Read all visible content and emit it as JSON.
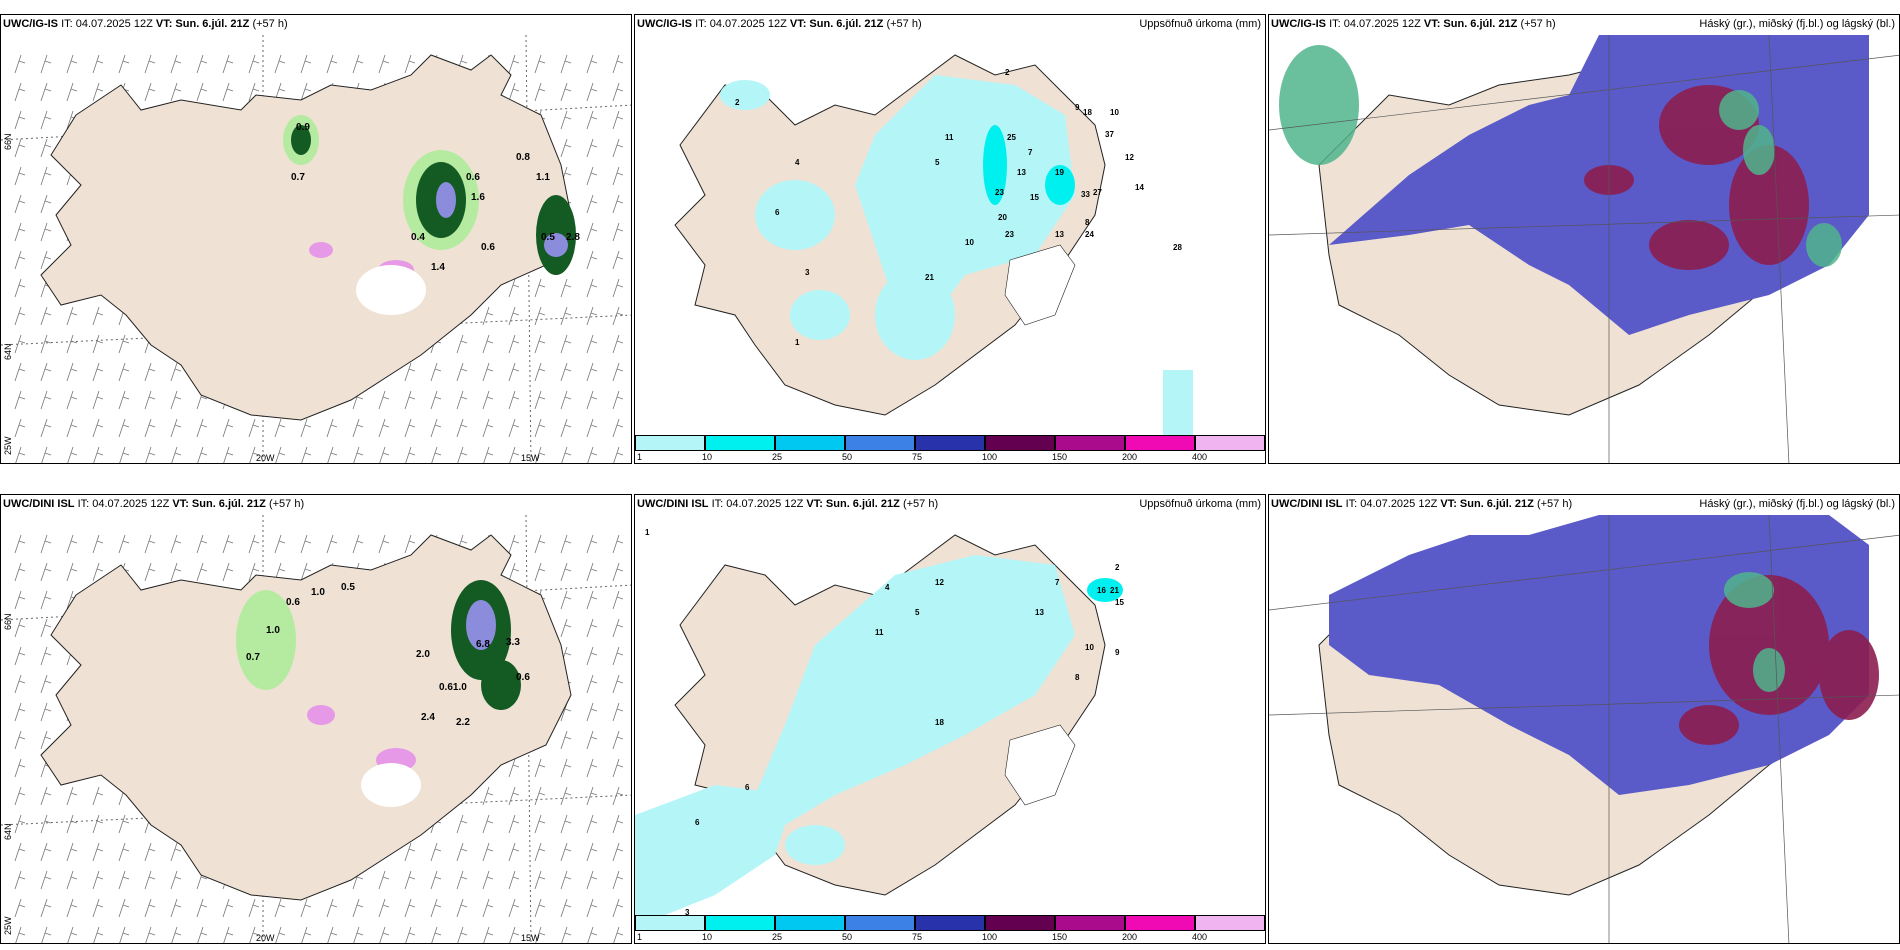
{
  "colors": {
    "land": "#efe2d4",
    "cyan": "#b4f5f8",
    "blue": "#5a5ac8",
    "red": "#8c1e50",
    "redlight": "#c86e5a",
    "green": "#50b48c",
    "lightgreen": "#b4eba0",
    "darkgreen": "#145a23",
    "pink": "#e699e6"
  },
  "panels": {
    "top_left": {
      "model": "UWC/IG-IS",
      "it": "IT: 04.07.2025 12Z",
      "vt": "VT: Sun. 6.júl. 21Z",
      "lead": "(+57 h)",
      "right": ""
    },
    "top_mid": {
      "model": "UWC/IG-IS",
      "it": "IT: 04.07.2025 12Z",
      "vt": "VT: Sun. 6.júl. 21Z",
      "lead": "(+57 h)",
      "right": "Uppsöfnuð úrkoma (mm)"
    },
    "top_right": {
      "model": "UWC/IG-IS",
      "it": "IT: 04.07.2025 12Z",
      "vt": "VT: Sun. 6.júl. 21Z",
      "lead": "(+57 h)",
      "right": "Háský (gr.), miðský (fj.bl.) og lágský (bl.)"
    },
    "bot_left": {
      "model": "UWC/DINI ISL",
      "it": "IT: 04.07.2025 12Z",
      "vt": "VT: Sun. 6.júl. 21Z",
      "lead": "(+57 h)",
      "right": ""
    },
    "bot_mid": {
      "model": "UWC/DINI ISL",
      "it": "IT: 04.07.2025 12Z",
      "vt": "VT: Sun. 6.júl. 21Z",
      "lead": "(+57 h)",
      "right": "Uppsöfnuð úrkoma (mm)"
    },
    "bot_right": {
      "model": "UWC/DINI ISL",
      "it": "IT: 04.07.2025 12Z",
      "vt": "VT: Sun. 6.júl. 21Z",
      "lead": "(+57 h)",
      "right": "Háský (gr.), miðský (fj.bl.) og lágský (bl.)"
    }
  },
  "axis_labels": {
    "lon_20w": "20W",
    "lon_15w": "15W",
    "lat_66n": "66N",
    "lat_64n": "64N",
    "lon_25w": "25W"
  },
  "colorbar": {
    "ticks": [
      "1",
      "10",
      "25",
      "50",
      "75",
      "100",
      "150",
      "200",
      "400"
    ],
    "colors": [
      "#b4f5f8",
      "#00f0f0",
      "#00c8f0",
      "#3c82e6",
      "#2832aa",
      "#640050",
      "#aa0a8c",
      "#f00ab4",
      "#f0b4f0"
    ]
  },
  "precip_labels_top": [
    "2",
    "9",
    "18",
    "10",
    "25",
    "37",
    "13",
    "23",
    "19",
    "15",
    "33",
    "27",
    "24",
    "14",
    "20",
    "23",
    "21",
    "28",
    "13",
    "7",
    "5",
    "4",
    "6",
    "10",
    "2",
    "3",
    "1",
    "12",
    "8",
    "11"
  ],
  "precip_labels_bot": [
    "1",
    "2",
    "3",
    "4",
    "5",
    "6",
    "7",
    "8",
    "9",
    "10",
    "11",
    "13",
    "15",
    "16",
    "18",
    "21",
    "12",
    "6"
  ],
  "snow_labels_top": [
    "0.9",
    "0.7",
    "0.4",
    "0.6",
    "0.5",
    "2.8",
    "1.4",
    "0.8",
    "1.1",
    "0.6",
    "1.6"
  ],
  "snow_labels_bot": [
    "0.6",
    "1.0",
    "0.5",
    "0.7",
    "2.0",
    "0.61.0",
    "2.4",
    "2.2",
    "6.8",
    "3.3",
    "0.6",
    "1.0"
  ]
}
